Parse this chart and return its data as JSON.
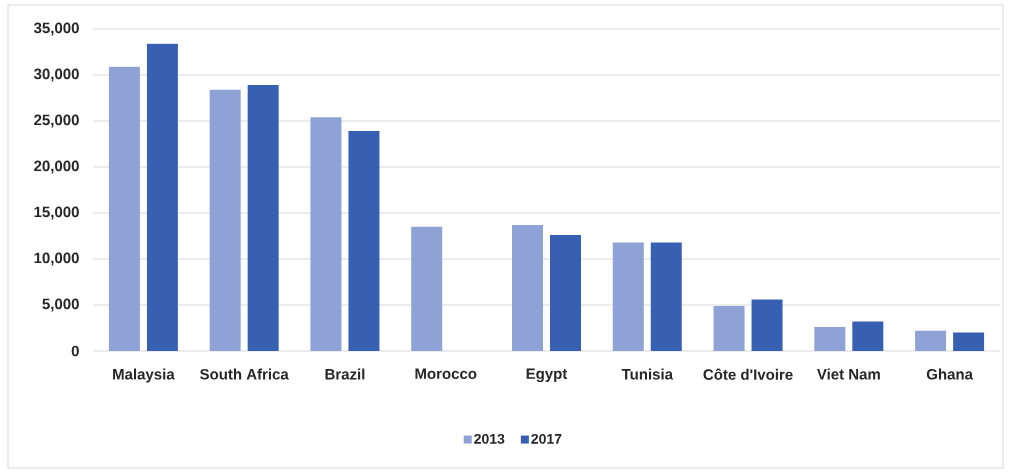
{
  "chart_data": {
    "type": "bar",
    "categories": [
      "Malaysia",
      "South Africa",
      "Brazil",
      "Morocco",
      "Egypt",
      "Tunisia",
      "Côte d'Ivoire",
      "Viet Nam",
      "Ghana"
    ],
    "series": [
      {
        "name": "2013",
        "color": "#8fa2d6",
        "values": [
          30900,
          28400,
          25400,
          13500,
          13700,
          11800,
          4900,
          2600,
          2200
        ]
      },
      {
        "name": "2017",
        "color": "#3860b2",
        "values": [
          33400,
          28900,
          23900,
          null,
          12600,
          11800,
          5600,
          3200,
          2000
        ]
      }
    ],
    "ylim": [
      0,
      35000
    ],
    "yticks": [
      0,
      {
        "value": 5000,
        "label": "5,000"
      },
      {
        "value": 10000,
        "label": "10,000"
      },
      {
        "value": 15000,
        "label": "15,000"
      },
      {
        "value": 20000,
        "label": "20,000"
      },
      {
        "value": 25000,
        "label": "25,000"
      },
      {
        "value": 30000,
        "label": "30,000"
      },
      {
        "value": 35000,
        "label": "35,000"
      }
    ],
    "grid": "y",
    "legend": "bottom"
  }
}
